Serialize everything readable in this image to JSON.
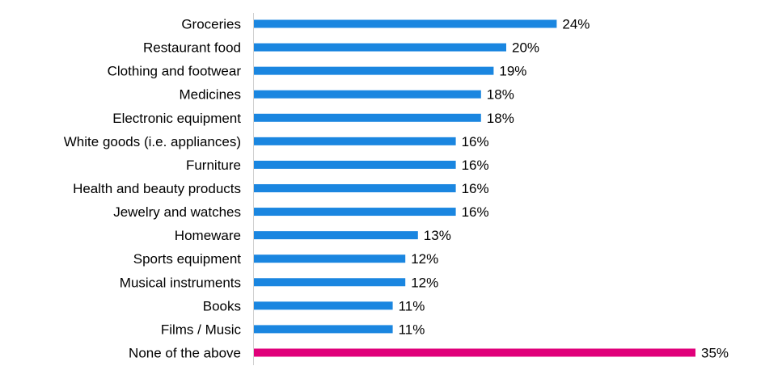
{
  "chart_data": {
    "type": "bar",
    "orientation": "horizontal",
    "categories": [
      "Groceries",
      "Restaurant food",
      "Clothing and footwear",
      "Medicines",
      "Electronic equipment",
      "White goods (i.e. appliances)",
      "Furniture",
      "Health and beauty products",
      "Jewelry and watches",
      "Homeware",
      "Sports equipment",
      "Musical instruments",
      "Books",
      "Films / Music",
      "None of the above"
    ],
    "values": [
      24,
      20,
      19,
      18,
      18,
      16,
      16,
      16,
      16,
      13,
      12,
      12,
      11,
      11,
      35
    ],
    "value_labels": [
      "24%",
      "20%",
      "19%",
      "18%",
      "18%",
      "16%",
      "16%",
      "16%",
      "16%",
      "13%",
      "12%",
      "12%",
      "11%",
      "11%",
      "35%"
    ],
    "unit": "%",
    "xlim": [
      0,
      35
    ],
    "grid": false,
    "legend": "none",
    "title": "",
    "xlabel": "",
    "ylabel": "",
    "colors": {
      "default": "#1a86e0",
      "highlight": "#e0007a"
    },
    "highlight_categories": [
      "None of the above"
    ]
  }
}
